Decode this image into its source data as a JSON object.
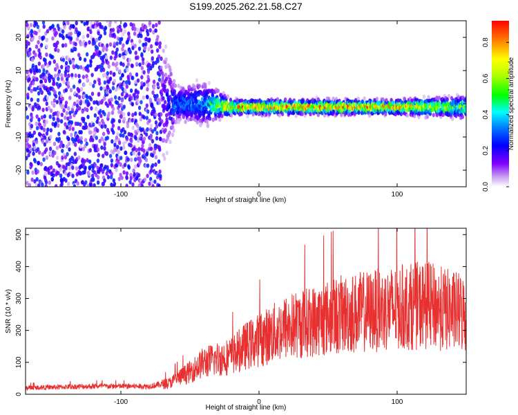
{
  "title": "S199.2025.262.21.58.C27",
  "chart_data": [
    {
      "type": "heatmap",
      "xlabel": "Height of straight line (km)",
      "ylabel": "Frequency (Hz)",
      "xlim": [
        -169,
        150
      ],
      "ylim": [
        -25,
        25
      ],
      "xticks": [
        -100,
        0,
        100
      ],
      "yticks": [
        -20,
        -10,
        0,
        10,
        20
      ],
      "xtick_labels": [
        "-100",
        "0",
        "100"
      ],
      "ytick_labels": [
        "-20",
        "-10",
        "0",
        "10",
        "20"
      ],
      "colorbar": {
        "label": "Normalized spectral amplitude",
        "range": [
          0,
          0.92
        ],
        "ticks": [
          0.0,
          0.2,
          0.4,
          0.6,
          0.8
        ],
        "tick_labels": [
          "0.0",
          "0.2",
          "0.4",
          "0.6",
          "0.8"
        ]
      },
      "description_points": [
        {
          "x": -169,
          "noise_spread_hz": 25,
          "center_hz": 0,
          "amplitude": 0.1
        },
        {
          "x": -75,
          "noise_spread_hz": 25,
          "center_hz": 0,
          "amplitude": 0.1
        },
        {
          "x": -60,
          "noise_spread_hz": 5,
          "center_hz": 0,
          "amplitude": 0.35
        },
        {
          "x": -40,
          "noise_spread_hz": 6,
          "center_hz": 0,
          "amplitude": 0.4
        },
        {
          "x": -20,
          "noise_spread_hz": 2,
          "center_hz": -1,
          "amplitude": 0.9
        },
        {
          "x": 0,
          "noise_spread_hz": 2,
          "center_hz": -1,
          "amplitude": 0.9
        },
        {
          "x": 50,
          "noise_spread_hz": 2,
          "center_hz": -1,
          "amplitude": 0.9
        },
        {
          "x": 100,
          "noise_spread_hz": 2,
          "center_hz": -1,
          "amplitude": 0.85
        },
        {
          "x": 150,
          "noise_spread_hz": 3,
          "center_hz": -1,
          "amplitude": 0.6
        }
      ]
    },
    {
      "type": "line",
      "xlabel": "Height of straight line (km)",
      "ylabel": "SNR (10 * v/v)",
      "xlim": [
        -169,
        150
      ],
      "ylim": [
        0,
        520
      ],
      "xticks": [
        -100,
        0,
        100
      ],
      "yticks": [
        0,
        100,
        200,
        300,
        400,
        500
      ],
      "xtick_labels": [
        "-100",
        "0",
        "100"
      ],
      "ytick_labels": [
        "0",
        "100",
        "200",
        "300",
        "400",
        "500"
      ],
      "series": [
        {
          "name": "SNR",
          "color": "#e83030",
          "x": [
            -169,
            -120,
            -80,
            -65,
            -50,
            -40,
            -30,
            -20,
            -10,
            0,
            10,
            20,
            40,
            60,
            80,
            100,
            120,
            140,
            150
          ],
          "y": [
            20,
            25,
            25,
            35,
            70,
            100,
            110,
            120,
            150,
            170,
            190,
            210,
            230,
            250,
            260,
            270,
            280,
            260,
            250
          ]
        }
      ]
    }
  ],
  "colors": {
    "line": "#e83030",
    "axis": "#000000"
  }
}
